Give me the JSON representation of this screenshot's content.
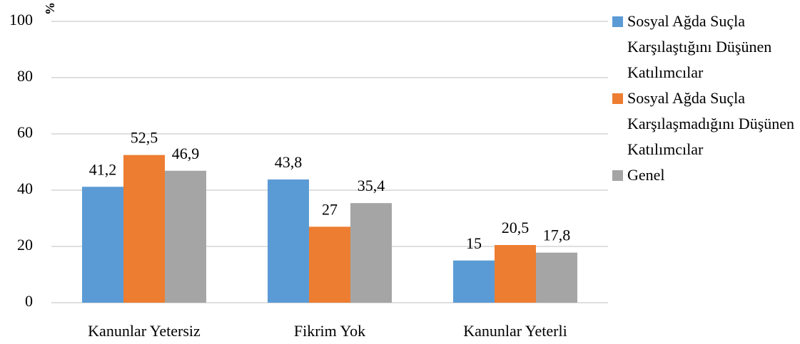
{
  "chart_data": {
    "type": "bar",
    "y_label": "%",
    "categories": [
      "Kanunlar Yetersiz",
      "Fikrim Yok",
      "Kanunlar Yeterli"
    ],
    "series": [
      {
        "name": "Sosyal Ağda Suçla Karşılaştığını Düşünen Katılımcılar",
        "color": "#5b9bd5",
        "values": [
          41.2,
          43.8,
          15
        ],
        "value_labels": [
          "41,2",
          "43,8",
          "15"
        ]
      },
      {
        "name": "Sosyal Ağda Suçla Karşılaşmadığını Düşünen Katılımcılar",
        "color": "#ed7d31",
        "values": [
          52.5,
          27,
          20.5
        ],
        "value_labels": [
          "52,5",
          "27",
          "20,5"
        ]
      },
      {
        "name": "Genel",
        "color": "#a5a5a5",
        "values": [
          46.9,
          35.4,
          17.8
        ],
        "value_labels": [
          "46,9",
          "35,4",
          "17,8"
        ]
      }
    ],
    "ylim": [
      0,
      100
    ],
    "yticks": [
      0,
      20,
      40,
      60,
      80,
      100
    ],
    "grid": true,
    "legend": "right"
  }
}
